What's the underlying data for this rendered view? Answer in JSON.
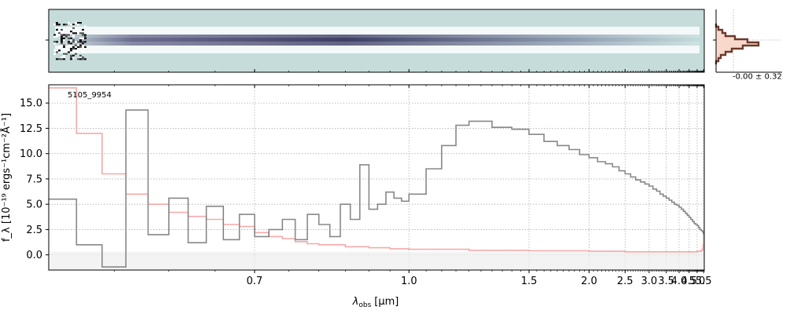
{
  "chart_data": {
    "type": "line",
    "object_label": "5105_9954",
    "xlabel_main": "λ",
    "xlabel_sub": "obs",
    "xlabel_unit": "[μm]",
    "ylabel": "f_λ [10⁻¹⁹ ergs⁻¹cm⁻²Å⁻¹]",
    "x_scale": "reciprocal",
    "xlim": [
      0.5,
      5.55
    ],
    "ylim": [
      -1.5,
      16.8
    ],
    "x_ticks": [
      0.7,
      1.0,
      1.5,
      2.0,
      2.5,
      3.0,
      3.5,
      4.0,
      4.5,
      5.0,
      5.5
    ],
    "x_tick_labels": [
      "0.7",
      "1.0",
      "1.5",
      "2.0",
      "2.5",
      "3.0",
      "3.5",
      "4.0",
      "4.5",
      "5.0",
      "5.5"
    ],
    "y_ticks": [
      0.0,
      2.5,
      5.0,
      7.5,
      10.0,
      12.5,
      15.0
    ],
    "y_tick_labels": [
      "0.0",
      "2.5",
      "5.0",
      "7.5",
      "10.0",
      "12.5",
      "15.0"
    ],
    "grid": true,
    "colors": {
      "flux": "#888888",
      "error": "#f4a9a9",
      "fill": "#eeeeee",
      "profile_line": "#6b3a2a",
      "profile_fill": "#f9d8cc",
      "twod_bg": "#c5dcdb",
      "twod_trace": "#3f3f66"
    },
    "series": [
      {
        "role": "flux",
        "x": [
          0.5,
          0.52,
          0.54,
          0.56,
          0.58,
          0.6,
          0.62,
          0.64,
          0.66,
          0.68,
          0.7,
          0.72,
          0.74,
          0.76,
          0.78,
          0.8,
          0.82,
          0.84,
          0.86,
          0.88,
          0.9,
          0.92,
          0.94,
          0.96,
          0.98,
          1.0,
          1.05,
          1.1,
          1.15,
          1.2,
          1.3,
          1.4,
          1.5,
          1.6,
          1.7,
          1.8,
          1.9,
          2.0,
          2.1,
          2.2,
          2.3,
          2.4,
          2.5,
          2.6,
          2.7,
          2.8,
          2.9,
          3.0,
          3.1,
          3.2,
          3.3,
          3.4,
          3.5,
          3.6,
          3.7,
          3.8,
          3.9,
          4.0,
          4.1,
          4.2,
          4.3,
          4.4,
          4.5,
          4.6,
          4.7,
          4.8,
          4.9,
          5.0,
          5.1,
          5.2,
          5.3,
          5.4,
          5.45,
          5.5
        ],
        "y": [
          5.5,
          1.0,
          -1.2,
          14.3,
          2.0,
          5.6,
          1.2,
          4.8,
          1.5,
          4.0,
          1.8,
          2.5,
          3.5,
          1.5,
          4.0,
          3.0,
          1.8,
          5.0,
          3.5,
          8.9,
          4.5,
          5.0,
          6.2,
          5.6,
          5.3,
          6.0,
          8.5,
          10.8,
          12.8,
          13.2,
          12.6,
          12.4,
          11.9,
          11.2,
          10.8,
          10.4,
          9.9,
          9.6,
          9.2,
          9.0,
          8.7,
          8.3,
          8.0,
          7.7,
          7.4,
          7.2,
          7.0,
          6.8,
          6.5,
          6.3,
          6.0,
          5.8,
          5.6,
          5.4,
          5.2,
          5.0,
          4.9,
          4.7,
          4.5,
          4.3,
          4.1,
          3.9,
          3.7,
          3.5,
          3.3,
          3.1,
          3.0,
          2.9,
          2.7,
          2.5,
          2.4,
          2.3,
          2.2,
          2.0
        ]
      },
      {
        "role": "error",
        "x": [
          0.5,
          0.52,
          0.54,
          0.56,
          0.58,
          0.6,
          0.62,
          0.64,
          0.66,
          0.68,
          0.7,
          0.72,
          0.74,
          0.76,
          0.78,
          0.8,
          0.85,
          0.9,
          0.95,
          1.0,
          1.2,
          1.5,
          2.0,
          2.5,
          3.0,
          3.5,
          4.0,
          4.5,
          5.0,
          5.3,
          5.4,
          5.45,
          5.5
        ],
        "y": [
          16.5,
          12.0,
          8.0,
          6.0,
          5.0,
          4.2,
          3.8,
          3.5,
          3.0,
          2.8,
          2.2,
          1.8,
          1.6,
          1.3,
          1.1,
          1.0,
          0.8,
          0.7,
          0.6,
          0.55,
          0.45,
          0.4,
          0.35,
          0.3,
          0.3,
          0.3,
          0.3,
          0.3,
          0.35,
          0.45,
          0.6,
          1.0,
          2.0
        ]
      }
    ],
    "profile_annotation": "-0.00 ± 0.32"
  }
}
